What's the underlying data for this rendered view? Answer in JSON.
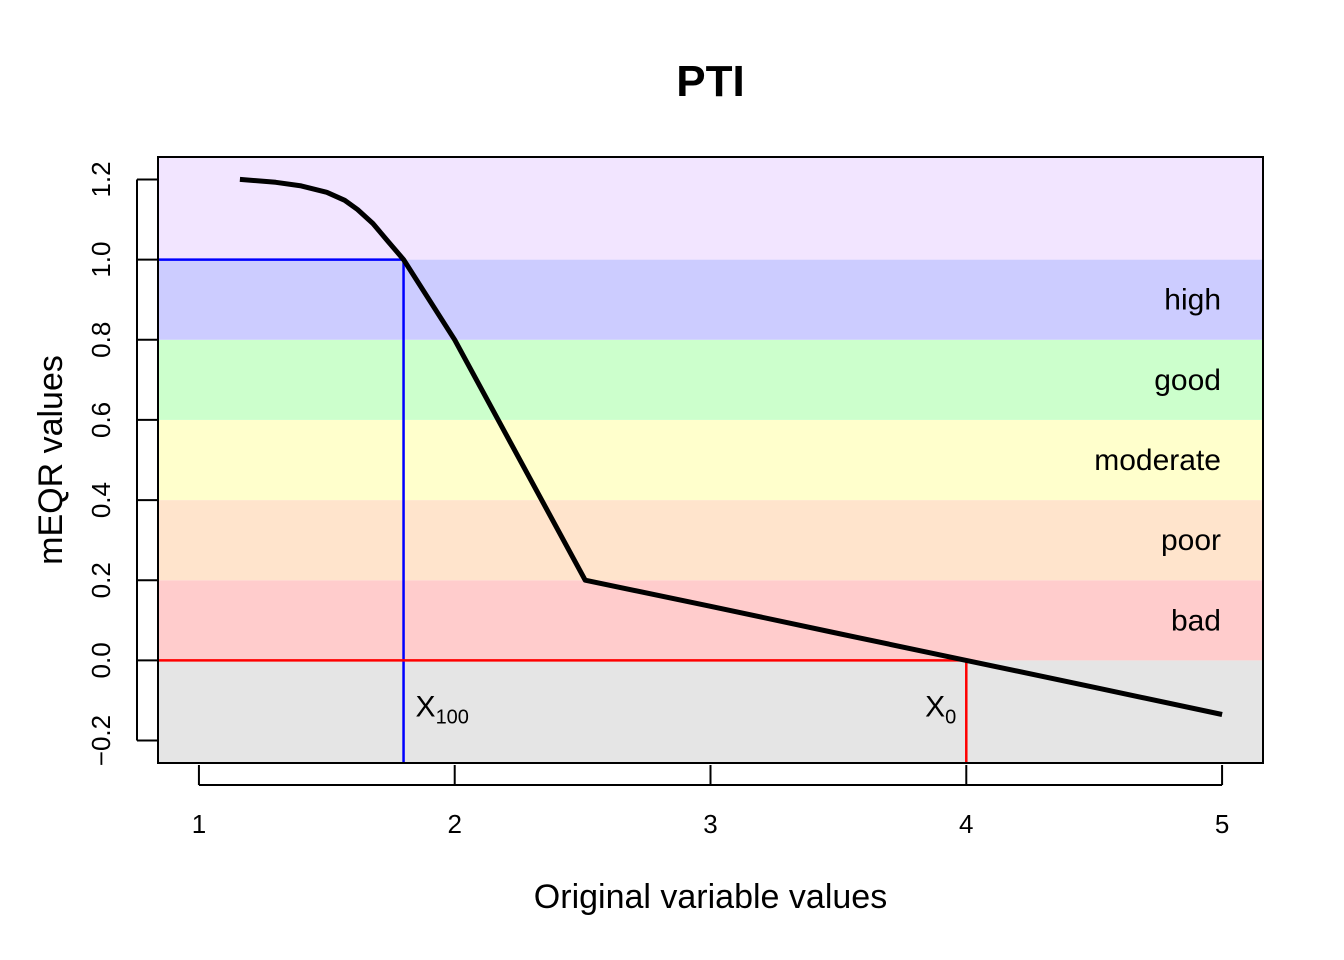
{
  "chart_data": {
    "type": "line",
    "title": "PTI",
    "xlabel": "Original variable values",
    "ylabel": "mEQR values",
    "xlim": [
      0.84,
      5.16
    ],
    "ylim": [
      -0.256,
      1.256
    ],
    "x_ticks": [
      1,
      2,
      3,
      4,
      5
    ],
    "x_tick_labels": [
      "1",
      "2",
      "3",
      "4",
      "5"
    ],
    "y_ticks": [
      -0.2,
      0.0,
      0.2,
      0.4,
      0.6,
      0.8,
      1.0,
      1.2
    ],
    "y_tick_labels": [
      "−0.2",
      "0.0",
      "0.2",
      "0.4",
      "0.6",
      "0.8",
      "1.0",
      "1.2"
    ],
    "grid": false,
    "bands": [
      {
        "label": "",
        "from": -0.256,
        "to": 0.0,
        "color": "#e5e5e5"
      },
      {
        "label": "bad",
        "from": 0.0,
        "to": 0.2,
        "color": "#ffcccc"
      },
      {
        "label": "poor",
        "from": 0.2,
        "to": 0.4,
        "color": "#ffe4cc"
      },
      {
        "label": "moderate",
        "from": 0.4,
        "to": 0.6,
        "color": "#ffffcc"
      },
      {
        "label": "good",
        "from": 0.6,
        "to": 0.8,
        "color": "#ccffcc"
      },
      {
        "label": "high",
        "from": 0.8,
        "to": 1.0,
        "color": "#ccccff"
      },
      {
        "label": "",
        "from": 1.0,
        "to": 1.256,
        "color": "#f2e5ff"
      }
    ],
    "series": [
      {
        "color": "#000000",
        "x": [
          1.16,
          1.3,
          1.4,
          1.5,
          1.57,
          1.62,
          1.68,
          1.74,
          1.8,
          2.0,
          2.51,
          3.0,
          3.5,
          4.0,
          4.5,
          5.0
        ],
        "y": [
          1.2,
          1.193,
          1.184,
          1.168,
          1.148,
          1.125,
          1.09,
          1.045,
          1.0,
          0.8,
          0.2,
          0.135,
          0.067,
          0.0,
          -0.067,
          -0.135
        ]
      }
    ],
    "markers": [
      {
        "name": "X100",
        "main": "X",
        "sub": "100",
        "x": 1.8,
        "y": 1.0,
        "color": "#0000ff"
      },
      {
        "name": "X0",
        "main": "X",
        "sub": "0",
        "x": 4.0,
        "y": 0.0,
        "color": "#ff0000"
      }
    ]
  }
}
